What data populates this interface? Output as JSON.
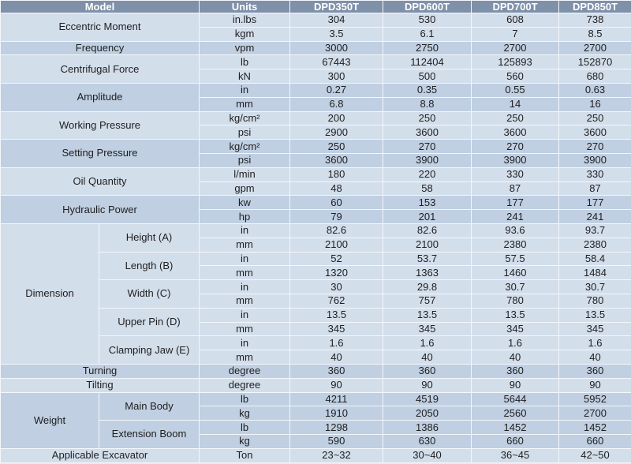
{
  "table": {
    "header": [
      "Model",
      "Units",
      "DPD350T",
      "DPD600T",
      "DPD700T",
      "DPD850T"
    ],
    "sections": [
      {
        "label": "Eccentric Moment",
        "rows": [
          {
            "unit": "in.lbs",
            "values": [
              "304",
              "530",
              "608",
              "738"
            ]
          },
          {
            "unit": "kgm",
            "values": [
              "3.5",
              "6.1",
              "7",
              "8.5"
            ]
          }
        ]
      },
      {
        "label": "Frequency",
        "rows": [
          {
            "unit": "vpm",
            "values": [
              "3000",
              "2750",
              "2700",
              "2700"
            ]
          }
        ]
      },
      {
        "label": "Centrifugal Force",
        "rows": [
          {
            "unit": "lb",
            "values": [
              "67443",
              "112404",
              "125893",
              "152870"
            ]
          },
          {
            "unit": "kN",
            "values": [
              "300",
              "500",
              "560",
              "680"
            ]
          }
        ]
      },
      {
        "label": "Amplitude",
        "rows": [
          {
            "unit": "in",
            "values": [
              "0.27",
              "0.35",
              "0.55",
              "0.63"
            ]
          },
          {
            "unit": "mm",
            "values": [
              "6.8",
              "8.8",
              "14",
              "16"
            ]
          }
        ]
      },
      {
        "label": "Working Pressure",
        "rows": [
          {
            "unit": "kg/cm²",
            "values": [
              "200",
              "250",
              "250",
              "250"
            ]
          },
          {
            "unit": "psi",
            "values": [
              "2900",
              "3600",
              "3600",
              "3600"
            ]
          }
        ]
      },
      {
        "label": "Setting Pressure",
        "rows": [
          {
            "unit": "kg/cm²",
            "values": [
              "250",
              "270",
              "270",
              "270"
            ]
          },
          {
            "unit": "psi",
            "values": [
              "3600",
              "3900",
              "3900",
              "3900"
            ]
          }
        ]
      },
      {
        "label": "Oil Quantity",
        "rows": [
          {
            "unit": "l/min",
            "values": [
              "180",
              "220",
              "330",
              "330"
            ]
          },
          {
            "unit": "gpm",
            "values": [
              "48",
              "58",
              "87",
              "87"
            ]
          }
        ]
      },
      {
        "label": "Hydraulic Power",
        "rows": [
          {
            "unit": "kw",
            "values": [
              "60",
              "153",
              "177",
              "177"
            ]
          },
          {
            "unit": "hp",
            "values": [
              "79",
              "201",
              "241",
              "241"
            ]
          }
        ]
      },
      {
        "label": "Dimension",
        "subsections": [
          {
            "label": "Height (A)",
            "rows": [
              {
                "unit": "in",
                "values": [
                  "82.6",
                  "82.6",
                  "93.6",
                  "93.7"
                ]
              },
              {
                "unit": "mm",
                "values": [
                  "2100",
                  "2100",
                  "2380",
                  "2380"
                ]
              }
            ]
          },
          {
            "label": "Length (B)",
            "rows": [
              {
                "unit": "in",
                "values": [
                  "52",
                  "53.7",
                  "57.5",
                  "58.4"
                ]
              },
              {
                "unit": "mm",
                "values": [
                  "1320",
                  "1363",
                  "1460",
                  "1484"
                ]
              }
            ]
          },
          {
            "label": "Width (C)",
            "rows": [
              {
                "unit": "in",
                "values": [
                  "30",
                  "29.8",
                  "30.7",
                  "30.7"
                ]
              },
              {
                "unit": "mm",
                "values": [
                  "762",
                  "757",
                  "780",
                  "780"
                ]
              }
            ]
          },
          {
            "label": "Upper Pin (D)",
            "rows": [
              {
                "unit": "in",
                "values": [
                  "13.5",
                  "13.5",
                  "13.5",
                  "13.5"
                ]
              },
              {
                "unit": "mm",
                "values": [
                  "345",
                  "345",
                  "345",
                  "345"
                ]
              }
            ]
          },
          {
            "label": "Clamping Jaw (E)",
            "rows": [
              {
                "unit": "in",
                "values": [
                  "1.6",
                  "1.6",
                  "1.6",
                  "1.6"
                ]
              },
              {
                "unit": "mm",
                "values": [
                  "40",
                  "40",
                  "40",
                  "40"
                ]
              }
            ]
          }
        ]
      },
      {
        "label": "Turning",
        "rows": [
          {
            "unit": "degree",
            "values": [
              "360",
              "360",
              "360",
              "360"
            ]
          }
        ]
      },
      {
        "label": "Tilting",
        "rows": [
          {
            "unit": "degree",
            "values": [
              "90",
              "90",
              "90",
              "90"
            ]
          }
        ]
      },
      {
        "label": "Weight",
        "subsections": [
          {
            "label": "Main Body",
            "rows": [
              {
                "unit": "lb",
                "values": [
                  "4211",
                  "4519",
                  "5644",
                  "5952"
                ]
              },
              {
                "unit": "kg",
                "values": [
                  "1910",
                  "2050",
                  "2560",
                  "2700"
                ]
              }
            ]
          },
          {
            "label": "Extension Boom",
            "rows": [
              {
                "unit": "lb",
                "values": [
                  "1298",
                  "1386",
                  "1452",
                  "1452"
                ]
              },
              {
                "unit": "kg",
                "values": [
                  "590",
                  "630",
                  "660",
                  "660"
                ]
              }
            ]
          }
        ]
      },
      {
        "label": "Applicable Excavator",
        "rows": [
          {
            "unit": "Ton",
            "values": [
              "23~32",
              "30~40",
              "36~45",
              "42~50"
            ]
          }
        ]
      }
    ]
  }
}
